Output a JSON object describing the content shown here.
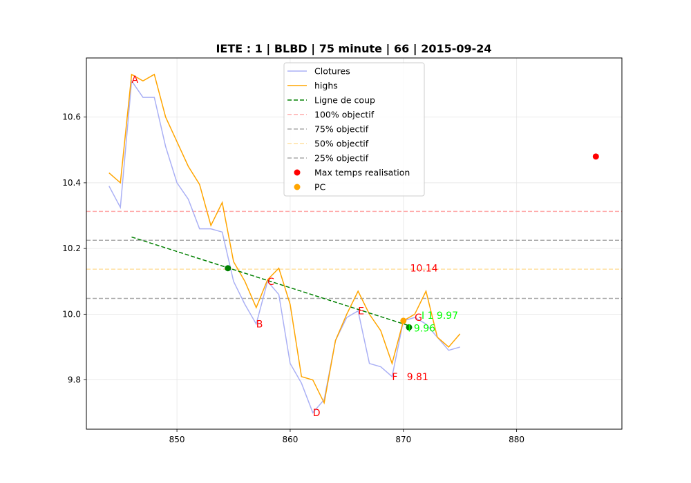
{
  "chart_data": {
    "type": "line",
    "title": "IETE : 1 | BLBD | 75 minute | 66 | 2015-09-24",
    "xlabel": "",
    "ylabel": "",
    "xlim": [
      842,
      889.3
    ],
    "ylim": [
      9.65,
      10.78
    ],
    "xticks": [
      850,
      860,
      870,
      880
    ],
    "yticks": [
      9.8,
      10.0,
      10.2,
      10.4,
      10.6
    ],
    "xtick_labels": [
      "850",
      "860",
      "870",
      "880"
    ],
    "ytick_labels": [
      "9.8",
      "10.0",
      "10.2",
      "10.4",
      "10.6"
    ],
    "grid": true,
    "legend_position": "top-center",
    "series": [
      {
        "name": "Clotures",
        "color": "#aab0f5",
        "x": [
          844,
          845,
          846,
          847,
          848,
          849,
          850,
          851,
          852,
          853,
          854,
          855,
          856,
          857,
          858,
          859,
          860,
          861,
          862,
          863,
          864,
          865,
          866,
          867,
          868,
          869,
          870,
          871,
          872,
          873,
          874,
          875
        ],
        "y": [
          10.39,
          10.325,
          10.71,
          10.66,
          10.66,
          10.51,
          10.4,
          10.35,
          10.26,
          10.26,
          10.25,
          10.1,
          10.03,
          9.97,
          10.1,
          10.06,
          9.85,
          9.79,
          9.7,
          9.74,
          9.92,
          9.99,
          10.01,
          9.85,
          9.84,
          9.81,
          9.98,
          9.99,
          9.97,
          9.93,
          9.89,
          9.9
        ]
      },
      {
        "name": "highs",
        "color": "#ffa500",
        "x": [
          844,
          845,
          846,
          847,
          848,
          849,
          850,
          851,
          852,
          853,
          854,
          855,
          856,
          857,
          858,
          859,
          860,
          861,
          862,
          863,
          864,
          865,
          866,
          867,
          868,
          869,
          870,
          871,
          872,
          873,
          874,
          875
        ],
        "y": [
          10.43,
          10.4,
          10.73,
          10.71,
          10.73,
          10.6,
          10.525,
          10.45,
          10.395,
          10.27,
          10.34,
          10.16,
          10.1,
          10.02,
          10.105,
          10.14,
          10.03,
          9.81,
          9.8,
          9.73,
          9.92,
          10.0,
          10.07,
          10.0,
          9.95,
          9.85,
          9.98,
          10.0,
          10.07,
          9.93,
          9.9,
          9.94
        ]
      },
      {
        "name": "Ligne de coup",
        "color": "#008000",
        "dash": "dashed",
        "x": [
          846,
          870.5
        ],
        "y": [
          10.235,
          9.965
        ]
      }
    ],
    "hlines": [
      {
        "name": "100% objectif",
        "y": 10.313,
        "color": "#ffaaaa"
      },
      {
        "name": "75% objectif",
        "y": 10.225,
        "color": "#aaaaaa"
      },
      {
        "name": "50% objectif",
        "y": 10.137,
        "color": "#ffe0a0"
      },
      {
        "name": "25% objectif",
        "y": 10.048,
        "color": "#aaaaaa"
      }
    ],
    "points": [
      {
        "name": "Max temps realisation",
        "x": 887,
        "y": 10.48,
        "color": "#ff0000",
        "legend": true
      },
      {
        "name": "PC",
        "x": 870,
        "y": 9.98,
        "color": "#ffa500",
        "legend": true
      },
      {
        "x": 854.5,
        "y": 10.14,
        "color": "#008000",
        "legend": false
      },
      {
        "x": 870.5,
        "y": 9.96,
        "color": "#008000",
        "legend": false
      }
    ],
    "annotations": [
      {
        "text": "A",
        "x": 846,
        "y": 10.715,
        "color": "red"
      },
      {
        "text": "B",
        "x": 857,
        "y": 9.97,
        "color": "red"
      },
      {
        "text": "C",
        "x": 858,
        "y": 10.1,
        "color": "red"
      },
      {
        "text": "D",
        "x": 862,
        "y": 9.7,
        "color": "red"
      },
      {
        "text": "E",
        "x": 866,
        "y": 10.01,
        "color": "red"
      },
      {
        "text": "F",
        "x": 869,
        "y": 9.81,
        "color": "red"
      },
      {
        "text": "G",
        "x": 871,
        "y": 9.99,
        "color": "red"
      },
      {
        "text": "10.14",
        "x": 870.6,
        "y": 10.14,
        "color": "red"
      },
      {
        "text": "9.81",
        "x": 870.3,
        "y": 9.81,
        "color": "red"
      },
      {
        "text": "I 1 9.97",
        "x": 871.6,
        "y": 9.997,
        "color": "lime"
      },
      {
        "text": "I 9.96",
        "x": 870.4,
        "y": 9.958,
        "color": "lime"
      }
    ]
  }
}
